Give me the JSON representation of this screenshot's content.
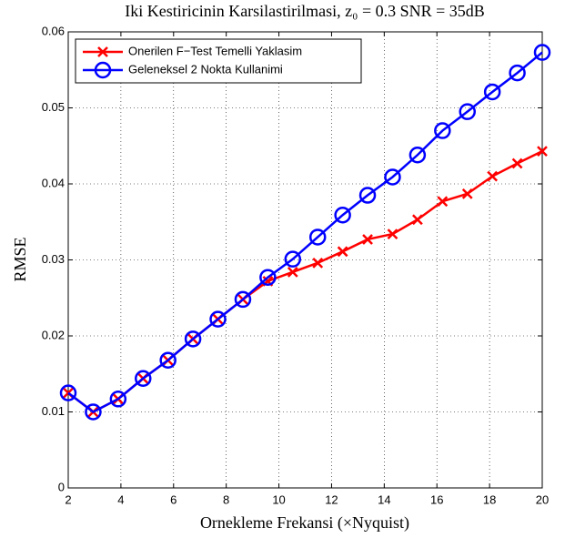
{
  "chart_data": {
    "type": "line",
    "title": "Iki Kestiricinin Karsilastirilmasi, z₀ = 0.3 SNR = 35dB",
    "xlabel": "Ornekleme Frekansi (×Nyquist)",
    "ylabel": "RMSE",
    "x": [
      2,
      2.947,
      3.895,
      4.842,
      5.789,
      6.737,
      7.684,
      8.632,
      9.579,
      10.526,
      11.474,
      12.421,
      13.368,
      14.316,
      15.263,
      16.211,
      17.158,
      18.105,
      19.053,
      20
    ],
    "series": [
      {
        "name": "Onerilen F−Test Temelli Yaklasim",
        "color": "#ff0000",
        "marker": "x",
        "values": [
          0.0125,
          0.01,
          0.0117,
          0.0144,
          0.0168,
          0.0196,
          0.0222,
          0.0248,
          0.0272,
          0.0284,
          0.0296,
          0.0311,
          0.0327,
          0.0334,
          0.0353,
          0.0377,
          0.0387,
          0.041,
          0.0427,
          0.0443
        ]
      },
      {
        "name": "Geleneksel 2 Nokta Kullanimi",
        "color": "#0000ff",
        "marker": "o",
        "values": [
          0.0125,
          0.01,
          0.0117,
          0.0144,
          0.0168,
          0.0196,
          0.0222,
          0.0248,
          0.0277,
          0.0301,
          0.033,
          0.0359,
          0.0385,
          0.0409,
          0.0438,
          0.047,
          0.0495,
          0.0521,
          0.0546,
          0.0573
        ]
      }
    ],
    "xlim": [
      2,
      20
    ],
    "xticks": [
      2,
      4,
      6,
      8,
      10,
      12,
      14,
      16,
      18,
      20
    ],
    "ylim": [
      0,
      0.06
    ],
    "yticks": [
      0,
      0.01,
      0.02,
      0.03,
      0.04,
      0.05,
      0.06
    ],
    "grid": true,
    "legend": "upper left"
  }
}
